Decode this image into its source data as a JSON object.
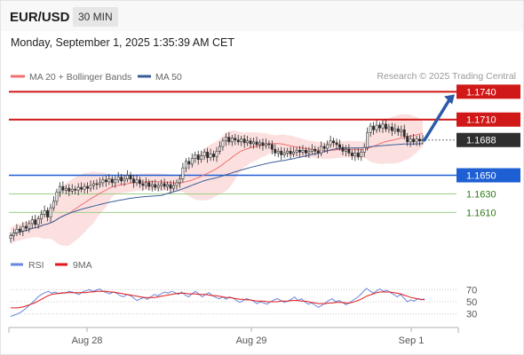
{
  "header": {
    "pair": "EUR/USD",
    "timeframe": "30 MIN"
  },
  "datetime": "Monday, September 1, 2025 1:35:39 AM CET",
  "credit": "Research © 2025 Trading Central",
  "colors": {
    "resistance": "#d01818",
    "support": "#1f5fd4",
    "target": "#d8eacc",
    "price": "#2f2f2f",
    "bull": "#ffffff",
    "bear": "#2b2b2b",
    "ma20": "#f07070",
    "ma50": "#3a5e98",
    "band": "#fbdada",
    "arrow": "#2b5ba8",
    "rsi": "#6a86de",
    "rsi_ma": "#e01818"
  },
  "chart_data": [
    {
      "type": "candlestick",
      "legend": [
        "MA 20 + Bollinger Bands",
        "MA 50"
      ],
      "x_ticks": [
        "Aug 28",
        "Aug 29",
        "Sep 1"
      ],
      "ylim": [
        1.1575,
        1.1747
      ],
      "last_price": 1.1688,
      "levels": [
        {
          "value": 1.174,
          "label": "1.1740",
          "kind": "resistance"
        },
        {
          "value": 1.171,
          "label": "1.1710",
          "kind": "resistance"
        },
        {
          "value": 1.1688,
          "label": "1.1688",
          "kind": "price"
        },
        {
          "value": 1.165,
          "label": "1.1650",
          "kind": "support"
        },
        {
          "value": 1.163,
          "label": "1.1630",
          "kind": "target"
        },
        {
          "value": 1.161,
          "label": "1.1610",
          "kind": "target"
        }
      ],
      "arrow": {
        "from": 1.1688,
        "to": 1.1737
      },
      "close_series": [
        1.1585,
        1.1588,
        1.1592,
        1.159,
        1.1595,
        1.1593,
        1.1598,
        1.1602,
        1.1597,
        1.1603,
        1.1608,
        1.1612,
        1.1605,
        1.1615,
        1.1622,
        1.1632,
        1.1638,
        1.1634,
        1.1636,
        1.1633,
        1.1635,
        1.1634,
        1.1637,
        1.1635,
        1.1638,
        1.1636,
        1.1639,
        1.1641,
        1.164,
        1.1642,
        1.1645,
        1.1643,
        1.1646,
        1.1642,
        1.1645,
        1.1648,
        1.1644,
        1.1646,
        1.165,
        1.1646,
        1.1642,
        1.1645,
        1.1641,
        1.1639,
        1.1642,
        1.1638,
        1.164,
        1.1637,
        1.1639,
        1.1641,
        1.1638,
        1.164,
        1.1636,
        1.1639,
        1.1642,
        1.1646,
        1.1658,
        1.1665,
        1.1662,
        1.1668,
        1.1672,
        1.1667,
        1.1671,
        1.1675,
        1.1669,
        1.1673,
        1.167,
        1.1676,
        1.1681,
        1.1687,
        1.1691,
        1.1686,
        1.169,
        1.1688,
        1.1686,
        1.1689,
        1.1685,
        1.1687,
        1.1684,
        1.1686,
        1.1683,
        1.1685,
        1.1682,
        1.1684,
        1.1683,
        1.1678,
        1.1674,
        1.1676,
        1.1672,
        1.1674,
        1.1676,
        1.1673,
        1.1675,
        1.1677,
        1.1675,
        1.1677,
        1.1674,
        1.1676,
        1.1678,
        1.1676,
        1.1674,
        1.1681,
        1.1679,
        1.1683,
        1.1687,
        1.1685,
        1.1683,
        1.168,
        1.1676,
        1.1678,
        1.1674,
        1.1671,
        1.1674,
        1.167,
        1.1675,
        1.168,
        1.1696,
        1.1703,
        1.1699,
        1.1704,
        1.1701,
        1.1705,
        1.17,
        1.1702,
        1.1698,
        1.17,
        1.1697,
        1.1699,
        1.1692,
        1.1686,
        1.1689,
        1.1686,
        1.1689,
        1.1687,
        1.1688
      ]
    },
    {
      "type": "line",
      "legend": [
        "RSI",
        "9MA"
      ],
      "y_ticks": [
        70,
        50,
        30
      ],
      "ylim": [
        15,
        85
      ],
      "rsi": [
        26,
        28,
        30,
        33,
        37,
        42,
        47,
        52,
        58,
        62,
        65,
        67,
        64,
        66,
        63,
        65,
        64,
        67,
        66,
        64,
        62,
        66,
        68,
        70,
        67,
        69,
        71,
        67,
        65,
        63,
        66,
        64,
        60,
        58,
        62,
        60,
        56,
        52,
        55,
        57,
        54,
        58,
        62,
        60,
        63,
        66,
        64,
        67,
        65,
        62,
        66,
        61,
        58,
        63,
        67,
        63,
        58,
        62,
        65,
        60,
        57,
        55,
        58,
        54,
        58,
        56,
        52,
        49,
        52,
        55,
        53,
        51,
        47,
        50,
        48,
        46,
        50,
        53,
        55,
        52,
        49,
        51,
        54,
        58,
        52,
        55,
        50,
        46,
        48,
        44,
        41,
        44,
        48,
        52,
        55,
        50,
        52,
        49,
        45,
        48,
        52,
        56,
        60,
        66,
        72,
        68,
        64,
        68,
        71,
        67,
        69,
        65,
        62,
        58,
        62,
        56,
        50,
        53,
        51,
        55,
        53,
        55
      ],
      "ma9": [
        40,
        40,
        40,
        41,
        42,
        44,
        46,
        48,
        51,
        54,
        57,
        60,
        62,
        63,
        64,
        64,
        65,
        65,
        65,
        65,
        65,
        65,
        65,
        66,
        66,
        67,
        67,
        67,
        67,
        66,
        66,
        65,
        64,
        63,
        62,
        61,
        60,
        59,
        58,
        57,
        57,
        57,
        57,
        58,
        59,
        60,
        61,
        62,
        63,
        64,
        64,
        64,
        63,
        63,
        63,
        62,
        62,
        62,
        61,
        60,
        60,
        59,
        58,
        57,
        57,
        56,
        55,
        54,
        54,
        53,
        53,
        52,
        51,
        51,
        51,
        50,
        50,
        50,
        50,
        51,
        51,
        51,
        52,
        52,
        52,
        51,
        51,
        50,
        49,
        48,
        47,
        47,
        47,
        48,
        48,
        49,
        49,
        49,
        48,
        48,
        49,
        51,
        53,
        56,
        59,
        61,
        63,
        65,
        66,
        66,
        66,
        66,
        65,
        64,
        63,
        61,
        59,
        57,
        56,
        55,
        54,
        53
      ]
    }
  ]
}
